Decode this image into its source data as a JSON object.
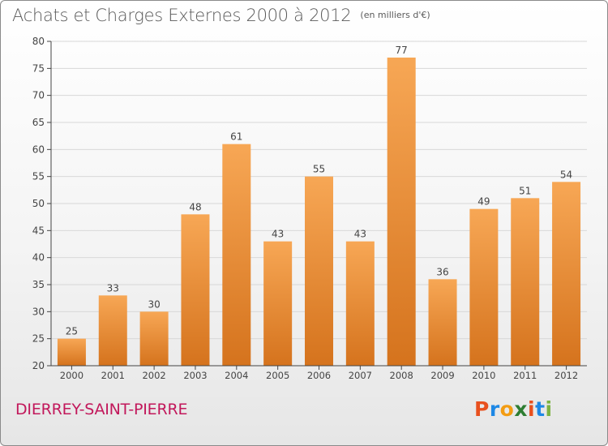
{
  "header": {
    "title": "Achats et Charges Externes 2000 à 2012",
    "subtitle": "(en milliers d'€)"
  },
  "footer": {
    "commune": "DIERREY-SAINT-PIERRE",
    "logo_text": "Proxiti",
    "logo_colors": [
      "#e8501e",
      "#1e88e5",
      "#f39c12",
      "#2e7d32",
      "#e8501e",
      "#1e88e5",
      "#7cb342"
    ]
  },
  "colors": {
    "bar_top": "#f7a755",
    "bar_bottom": "#d5731d",
    "axis": "#444444",
    "grid": "#d8d8d8",
    "text": "#444444"
  },
  "chart_data": {
    "type": "bar",
    "title": "Achats et Charges Externes 2000 à 2012",
    "subtitle": "(en milliers d'€)",
    "categories": [
      "2000",
      "2001",
      "2002",
      "2003",
      "2004",
      "2005",
      "2006",
      "2007",
      "2008",
      "2009",
      "2010",
      "2011",
      "2012"
    ],
    "values": [
      25,
      33,
      30,
      48,
      61,
      43,
      55,
      43,
      77,
      36,
      49,
      51,
      54
    ],
    "ylim": [
      20,
      80
    ],
    "yticks": [
      20,
      25,
      30,
      35,
      40,
      45,
      50,
      55,
      60,
      65,
      70,
      75,
      80
    ],
    "grid": true,
    "show_data_labels": true
  }
}
